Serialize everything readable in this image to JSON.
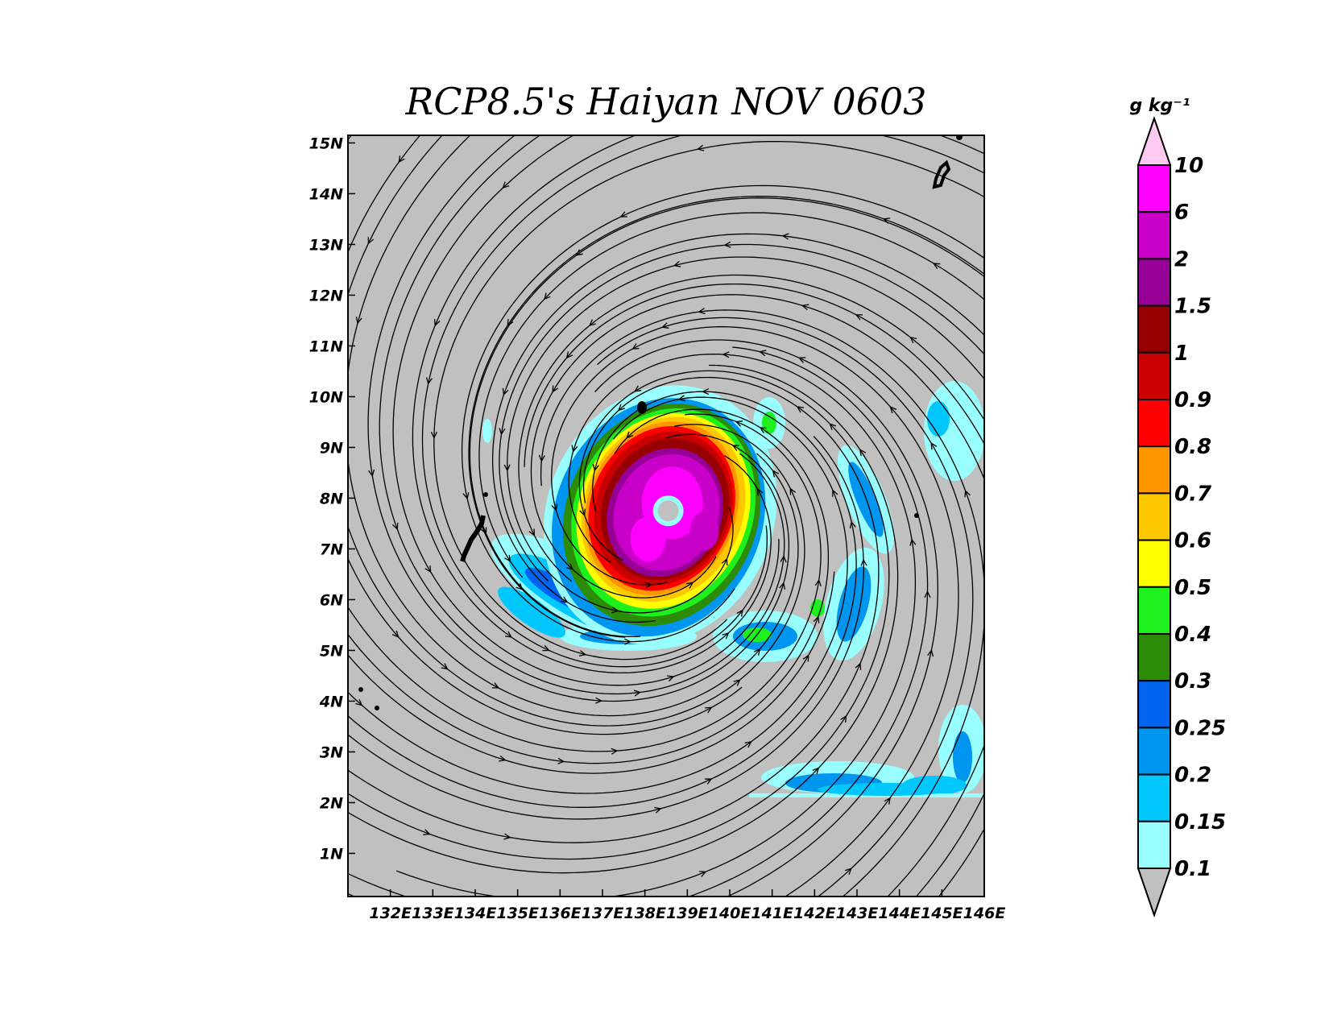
{
  "title": "RCP8.5's Haiyan NOV 0603",
  "units_label": "g  kg⁻¹",
  "chart_data": {
    "type": "heatmap",
    "title": "RCP8.5's Haiyan NOV 0603",
    "x_axis": {
      "range": [
        131.0,
        146.0
      ],
      "ticks": [
        132,
        133,
        134,
        135,
        136,
        137,
        138,
        139,
        140,
        141,
        142,
        143,
        144,
        145,
        146
      ],
      "tick_labels": [
        "132E",
        "133E",
        "134E",
        "135E",
        "136E",
        "137E",
        "138E",
        "139E",
        "140E",
        "141E",
        "142E",
        "143E",
        "144E",
        "145E",
        "146E"
      ]
    },
    "y_axis": {
      "range": [
        0.15,
        15.15
      ],
      "ticks": [
        1,
        2,
        3,
        4,
        5,
        6,
        7,
        8,
        9,
        10,
        11,
        12,
        13,
        14,
        15
      ],
      "tick_labels": [
        "1N",
        "2N",
        "3N",
        "4N",
        "5N",
        "6N",
        "7N",
        "8N",
        "9N",
        "10N",
        "11N",
        "12N",
        "13N",
        "14N",
        "15N"
      ]
    },
    "colorbar": {
      "units": "g  kg⁻¹",
      "levels": [
        "0.1",
        "0.15",
        "0.2",
        "0.25",
        "0.3",
        "0.4",
        "0.5",
        "0.6",
        "0.7",
        "0.8",
        "0.9",
        "1",
        "1.5",
        "2",
        "6",
        "10"
      ],
      "colors": [
        "#98fefe",
        "#00c8fe",
        "#0096f0",
        "#0064f0",
        "#2c8c08",
        "#1ef01e",
        "#fefe00",
        "#fec800",
        "#fe9600",
        "#fe0000",
        "#c80000",
        "#960000",
        "#960096",
        "#c800c8",
        "#fe00fe",
        "#fecaf0"
      ],
      "under_color": "#c0c0c0"
    },
    "storm_center": {
      "lon": 138.55,
      "lat": 7.75
    },
    "background_color": "#c0c0c0"
  }
}
